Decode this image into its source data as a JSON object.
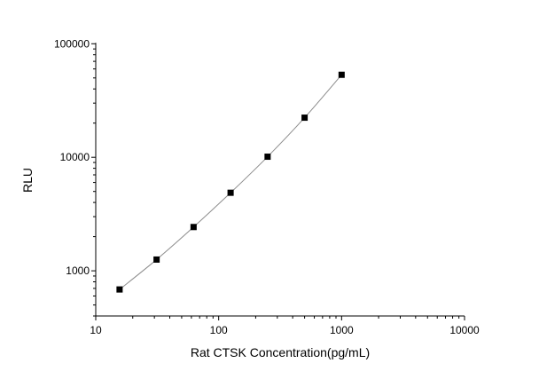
{
  "chart_data": {
    "type": "scatter",
    "title": "",
    "xlabel": "Rat CTSK Concentration(pg/mL)",
    "ylabel": "RLU",
    "xscale": "log",
    "yscale": "log",
    "xlim": [
      10,
      10000
    ],
    "ylim": [
      400,
      100000
    ],
    "x_ticks": [
      "10",
      "100",
      "1000",
      "10000"
    ],
    "y_ticks": [
      "1000",
      "10000",
      "100000"
    ],
    "grid": false,
    "legend": "none",
    "marker": "square",
    "fit_line": "smooth curve",
    "colors": {
      "marker": "#000000",
      "line": "#8c8c8c",
      "axis": "#000000"
    },
    "series": [
      {
        "x": [
          15.625,
          31.25,
          62.5,
          125,
          250,
          500,
          1000
        ],
        "y": [
          685,
          1256,
          2430,
          4870,
          10120,
          22330,
          53300
        ]
      }
    ]
  }
}
